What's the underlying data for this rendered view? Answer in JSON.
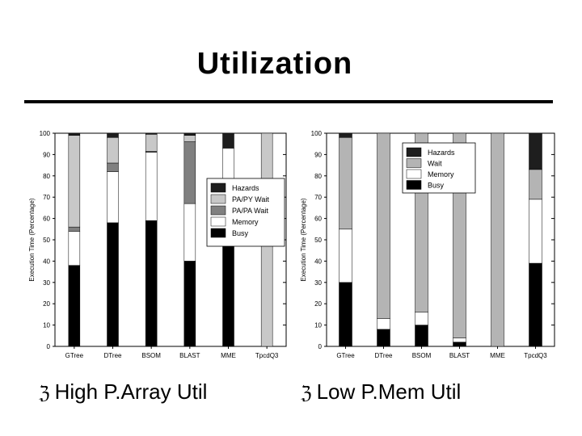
{
  "slide": {
    "title": "Utilization",
    "bullets": [
      "High P.Array Util",
      "Low P.Mem Util"
    ],
    "bullet_icon": "z-bullet-icon"
  },
  "chart_data": [
    {
      "type": "bar",
      "stacked": true,
      "title": "",
      "xlabel": "",
      "ylabel": "Execution Time (Percentage)",
      "ylim": [
        0,
        100
      ],
      "yticks": [
        0,
        10,
        20,
        30,
        40,
        50,
        60,
        70,
        80,
        90,
        100
      ],
      "categories": [
        "GTree",
        "DTree",
        "BSOM",
        "BLAST",
        "MME",
        "TpcdQ3"
      ],
      "series": [
        {
          "name": "Busy",
          "color": "#000000",
          "values": [
            38,
            58,
            59,
            40,
            56,
            0
          ]
        },
        {
          "name": "Memory",
          "color": "#ffffff",
          "values": [
            16,
            24,
            32,
            27,
            37,
            0
          ]
        },
        {
          "name": "PA/PA Wait",
          "color": "#808080",
          "values": [
            2,
            4,
            0.5,
            29,
            0,
            0
          ]
        },
        {
          "name": "PA/PY Wait",
          "color": "#c8c8c8",
          "values": [
            43,
            12,
            8,
            3,
            0,
            100
          ]
        },
        {
          "name": "Hazards",
          "color": "#1e1e1e",
          "values": [
            1,
            2,
            0.5,
            1,
            7,
            0
          ]
        }
      ],
      "legend": "right"
    },
    {
      "type": "bar",
      "stacked": true,
      "title": "",
      "xlabel": "",
      "ylabel": "Execution Time (Percentage)",
      "ylim": [
        0,
        100
      ],
      "yticks": [
        0,
        10,
        20,
        30,
        40,
        50,
        60,
        70,
        80,
        90,
        100
      ],
      "categories": [
        "GTree",
        "DTree",
        "BSOM",
        "BLAST",
        "MME",
        "TpcdQ3"
      ],
      "series": [
        {
          "name": "Busy",
          "color": "#000000",
          "values": [
            30,
            8,
            10,
            2,
            0,
            39
          ]
        },
        {
          "name": "Memory",
          "color": "#ffffff",
          "values": [
            25,
            5,
            6,
            2,
            0,
            30
          ]
        },
        {
          "name": "Wait",
          "color": "#b4b4b4",
          "values": [
            43,
            87,
            84,
            96,
            100,
            14
          ]
        },
        {
          "name": "Hazards",
          "color": "#1e1e1e",
          "values": [
            2,
            0,
            0,
            0,
            0,
            17
          ]
        }
      ],
      "legend": "top-right"
    }
  ]
}
